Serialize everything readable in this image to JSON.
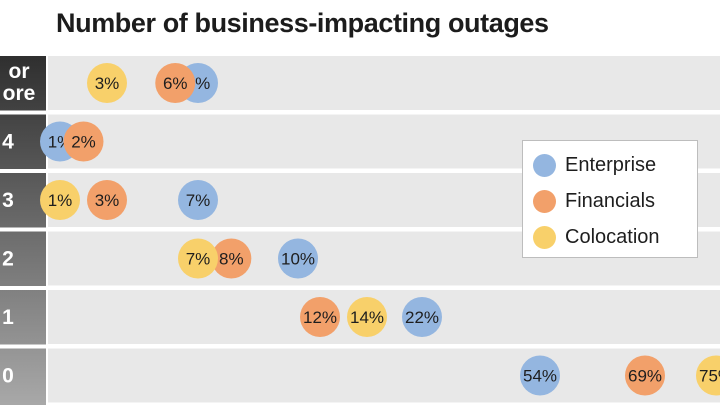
{
  "chart_data": {
    "type": "scatter",
    "title": "Number of business-impacting outages",
    "categories": [
      "or\nore",
      "4",
      "3",
      "2",
      "1",
      "0"
    ],
    "series": [
      {
        "name": "Enterprise",
        "color": "#94b6e0",
        "values": [
          7,
          1,
          7,
          10,
          22,
          54
        ]
      },
      {
        "name": "Financials",
        "color": "#f2a06a",
        "values": [
          6,
          2,
          3,
          8,
          12,
          69
        ]
      },
      {
        "name": "Colocation",
        "color": "#f8d06a",
        "values": [
          3,
          null,
          1,
          7,
          14,
          75
        ]
      }
    ],
    "value_suffix": "%",
    "legend_position": "right"
  },
  "colors": {
    "row_band": "#e8e8e8",
    "label_column_top": "#2f2f2f",
    "label_column_bottom": "#a9a9a9"
  }
}
